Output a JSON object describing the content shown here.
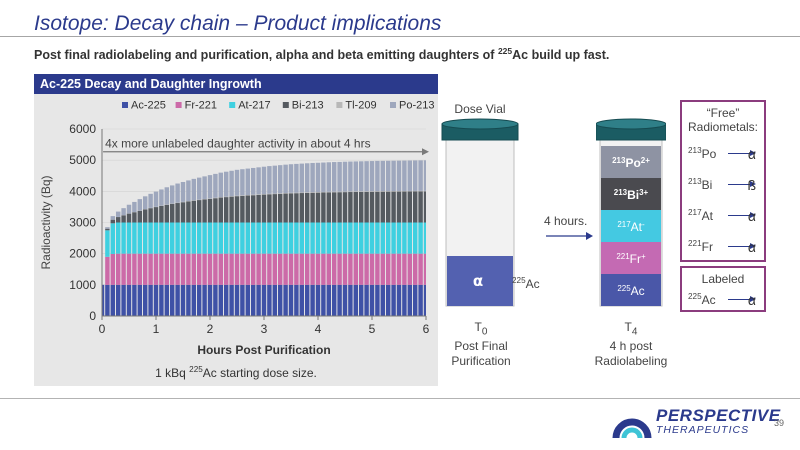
{
  "slide": {
    "title": "Isotope: Decay chain – Product implications",
    "subtitle_pre": "Post final radiolabeling and purification, alpha and beta emitting daughters of ",
    "subtitle_sup": "225",
    "subtitle_post": "Ac build up fast.",
    "page_number": "39"
  },
  "chart_panel": {
    "header": "Ac-225 Decay and Daughter Ingrowth",
    "annotation": "4x more unlabeled daughter activity in about 4 hrs",
    "caption_pre": "1 kBq ",
    "caption_sup": "225",
    "caption_post": "Ac starting dose size."
  },
  "chart_data": {
    "type": "bar",
    "stacked": true,
    "title": "Ac-225 Decay and Daughter Ingrowth",
    "xlabel": "Hours Post Purification",
    "ylabel": "Radioactivity (Bq)",
    "xlim": [
      0,
      6
    ],
    "ylim": [
      0,
      6000
    ],
    "x_ticks": [
      0,
      1,
      2,
      3,
      4,
      5,
      6
    ],
    "y_ticks": [
      0,
      1000,
      2000,
      3000,
      4000,
      5000,
      6000
    ],
    "legend_position": "top",
    "x_hours": [
      0,
      0.1,
      0.2,
      0.3,
      0.4,
      0.5,
      0.6,
      0.7,
      0.8,
      0.9,
      1.0,
      1.1,
      1.2,
      1.3,
      1.4,
      1.5,
      1.6,
      1.7,
      1.8,
      1.9,
      2.0,
      2.1,
      2.2,
      2.3,
      2.4,
      2.5,
      2.6,
      2.7,
      2.8,
      2.9,
      3.0,
      3.1,
      3.2,
      3.3,
      3.4,
      3.5,
      3.6,
      3.7,
      3.8,
      3.9,
      4.0,
      4.1,
      4.2,
      4.3,
      4.4,
      4.5,
      4.6,
      4.7,
      4.8,
      4.9,
      5.0,
      5.1,
      5.2,
      5.3,
      5.4,
      5.5,
      5.6,
      5.7,
      5.8,
      5.9,
      6.0
    ],
    "series": [
      {
        "name": "Ac-225",
        "color": "#3f51a6",
        "values": [
          1000,
          1000,
          1000,
          1000,
          1000,
          1000,
          1000,
          1000,
          1000,
          1000,
          1000,
          1000,
          1000,
          1000,
          1000,
          1000,
          1000,
          1000,
          1000,
          1000,
          1000,
          1000,
          1000,
          1000,
          1000,
          1000,
          1000,
          1000,
          1000,
          1000,
          1000,
          1000,
          1000,
          1000,
          1000,
          1000,
          1000,
          1000,
          1000,
          1000,
          1000,
          1000,
          1000,
          1000,
          1000,
          1000,
          1000,
          1000,
          1000,
          1000,
          1000,
          1000,
          1000,
          1000,
          1000,
          1000,
          1000,
          1000,
          1000,
          1000,
          1000
        ]
      },
      {
        "name": "Fr-221",
        "color": "#cc6aa8",
        "values": [
          0,
          900,
          990,
          1000,
          1000,
          1000,
          1000,
          1000,
          1000,
          1000,
          1000,
          1000,
          1000,
          1000,
          1000,
          1000,
          1000,
          1000,
          1000,
          1000,
          1000,
          1000,
          1000,
          1000,
          1000,
          1000,
          1000,
          1000,
          1000,
          1000,
          1000,
          1000,
          1000,
          1000,
          1000,
          1000,
          1000,
          1000,
          1000,
          1000,
          1000,
          1000,
          1000,
          1000,
          1000,
          1000,
          1000,
          1000,
          1000,
          1000,
          1000,
          1000,
          1000,
          1000,
          1000,
          1000,
          1000,
          1000,
          1000,
          1000,
          1000
        ]
      },
      {
        "name": "At-217",
        "color": "#3fd0e0",
        "values": [
          0,
          850,
          985,
          1000,
          1000,
          1000,
          1000,
          1000,
          1000,
          1000,
          1000,
          1000,
          1000,
          1000,
          1000,
          1000,
          1000,
          1000,
          1000,
          1000,
          1000,
          1000,
          1000,
          1000,
          1000,
          1000,
          1000,
          1000,
          1000,
          1000,
          1000,
          1000,
          1000,
          1000,
          1000,
          1000,
          1000,
          1000,
          1000,
          1000,
          1000,
          1000,
          1000,
          1000,
          1000,
          1000,
          1000,
          1000,
          1000,
          1000,
          1000,
          1000,
          1000,
          1000,
          1000,
          1000,
          1000,
          1000,
          1000,
          1000,
          1000
        ]
      },
      {
        "name": "Bi-213",
        "color": "#555a60",
        "values": [
          0,
          50,
          115,
          175,
          230,
          285,
          330,
          375,
          420,
          460,
          495,
          530,
          565,
          595,
          625,
          650,
          675,
          700,
          720,
          740,
          760,
          780,
          800,
          815,
          830,
          845,
          855,
          865,
          875,
          885,
          895,
          905,
          912,
          920,
          928,
          935,
          940,
          945,
          950,
          955,
          958,
          962,
          966,
          970,
          972,
          975,
          978,
          980,
          982,
          984,
          986,
          988,
          989,
          990,
          991,
          992,
          993,
          994,
          995,
          996,
          997
        ]
      },
      {
        "name": "Tl-209",
        "color": "#b8b8b8",
        "values": [
          0,
          1,
          2,
          4,
          5,
          6,
          7,
          8,
          9,
          9,
          10,
          11,
          11,
          12,
          12,
          13,
          13,
          14,
          14,
          15,
          15,
          16,
          16,
          16,
          17,
          17,
          17,
          17,
          18,
          18,
          18,
          18,
          18,
          19,
          19,
          19,
          19,
          19,
          19,
          19,
          19,
          20,
          20,
          20,
          20,
          20,
          20,
          20,
          20,
          20,
          20,
          20,
          20,
          20,
          20,
          20,
          20,
          20,
          20,
          20,
          20
        ]
      },
      {
        "name": "Po-213",
        "color": "#9ea7bd",
        "values": [
          0,
          49,
          113,
          171,
          225,
          279,
          323,
          367,
          411,
          451,
          485,
          519,
          554,
          583,
          613,
          637,
          662,
          686,
          706,
          725,
          745,
          764,
          784,
          799,
          813,
          828,
          838,
          848,
          857,
          867,
          877,
          887,
          894,
          901,
          909,
          916,
          921,
          926,
          931,
          936,
          939,
          942,
          946,
          950,
          952,
          955,
          958,
          960,
          962,
          964,
          966,
          968,
          969,
          970,
          971,
          972,
          973,
          974,
          975,
          976,
          977
        ]
      }
    ]
  },
  "vials": {
    "dose_vial_label": "Dose Vial",
    "arrow_label": "4 hours.",
    "t0": {
      "time": "T",
      "time_sub": "0",
      "line1": "Post Final",
      "line2": "Purification",
      "liquid_symbol": "α",
      "isotope_sup": "225",
      "isotope": "Ac"
    },
    "t4": {
      "time": "T",
      "time_sub": "4",
      "line1": "4 h post",
      "line2": "Radiolabeling",
      "layers": [
        {
          "sup": "213",
          "el": "Po",
          "charge": "2+",
          "color": "#8e93a3"
        },
        {
          "sup": "213",
          "el": "Bi",
          "charge": "3+",
          "color": "#4a4a4f"
        },
        {
          "sup": "217",
          "el": "At",
          "charge": "-",
          "color": "#44c9e2"
        },
        {
          "sup": "221",
          "el": "Fr",
          "charge": "+",
          "color": "#c46ab3"
        },
        {
          "sup": "225",
          "el": "Ac",
          "charge": "",
          "color": "#4a57a8"
        }
      ]
    }
  },
  "free_box": {
    "title_line1": "“Free”",
    "title_line2": "Radiometals:",
    "items": [
      {
        "sup": "213",
        "el": "Po",
        "emission": "α"
      },
      {
        "sup": "213",
        "el": "Bi",
        "emission": "ß"
      },
      {
        "sup": "217",
        "el": "At",
        "emission": "α"
      },
      {
        "sup": "221",
        "el": "Fr",
        "emission": "α"
      }
    ]
  },
  "labeled_box": {
    "title": "Labeled",
    "item": {
      "sup": "225",
      "el": "Ac",
      "emission": "α"
    }
  },
  "logo": {
    "name": "PERSPECTIVE",
    "sub": "THERAPEUTICS"
  }
}
